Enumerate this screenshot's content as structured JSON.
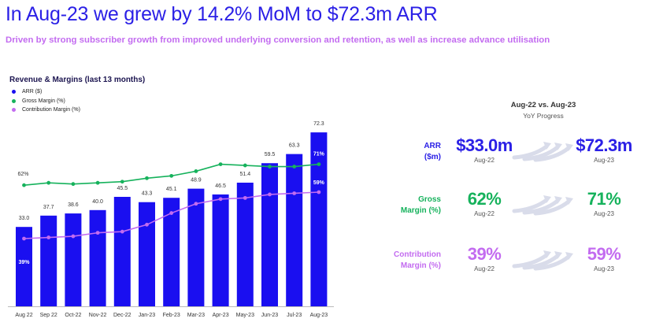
{
  "header": {
    "title": "In Aug-23 we grew by 14.2% MoM to $72.3m ARR",
    "subtitle": "Driven by strong subscriber growth from improved underlying conversion and retention, as well as increase advance utilisation"
  },
  "colors": {
    "arr": "#1a0ff0",
    "gross": "#16b25c",
    "contribution": "#c36cf0",
    "title": "#2b20e6"
  },
  "chart_data": {
    "type": "bar",
    "title": "Revenue & Margins (last 13 months)",
    "categories": [
      "Aug 22",
      "Sep 22",
      "Oct-22",
      "Nov-22",
      "Dec-22",
      "Jan-23",
      "Feb-23",
      "Mar-23",
      "Apr-23",
      "May-23",
      "Jun-23",
      "Jul-23",
      "Aug-23"
    ],
    "series": [
      {
        "name": "ARR ($)",
        "type": "bar",
        "values": [
          33.0,
          37.7,
          38.6,
          40.0,
          45.5,
          43.3,
          45.1,
          48.9,
          46.5,
          51.4,
          59.5,
          63.3,
          72.3
        ]
      },
      {
        "name": "Gross Margin (%)",
        "type": "line",
        "values": [
          62,
          63,
          62.5,
          63,
          63.5,
          65,
          66,
          68,
          71,
          70.5,
          70,
          70,
          71
        ]
      },
      {
        "name": "Contribution Margin (%)",
        "type": "line",
        "values": [
          39,
          39.5,
          40,
          41.5,
          42,
          45,
          50,
          54,
          56,
          56.5,
          58,
          58.5,
          59
        ]
      }
    ],
    "data_labels": {
      "arr": [
        "33.0",
        "37.7",
        "38.6",
        "40.0",
        "45.5",
        "43.3",
        "45.1",
        "48.9",
        "46.5",
        "51.4",
        "59.5",
        "63.3",
        "72.3"
      ],
      "gross_first": "62%",
      "gross_last": "71%",
      "contribution_first": "39%",
      "contribution_last": "59%"
    },
    "legend": [
      "ARR ($)",
      "Gross Margin (%)",
      "Contribution Margin (%)"
    ],
    "legend_position": "top-left",
    "grid": false
  },
  "comparison": {
    "title": "Aug-22 vs. Aug-23",
    "subtitle": "YoY Progress",
    "rows": [
      {
        "label_line1": "ARR",
        "label_line2": "($m)",
        "from": "$33.0m",
        "from_period": "Aug-22",
        "to": "$72.3m",
        "to_period": "Aug-23",
        "color": "#2b20e6"
      },
      {
        "label_line1": "Gross",
        "label_line2": "Margin (%)",
        "from": "62%",
        "from_period": "Aug-22",
        "to": "71%",
        "to_period": "Aug-23",
        "color": "#16b25c"
      },
      {
        "label_line1": "Contribution",
        "label_line2": "Margin (%)",
        "from": "39%",
        "from_period": "Aug-22",
        "to": "59%",
        "to_period": "Aug-23",
        "color": "#c36cf0"
      }
    ]
  }
}
